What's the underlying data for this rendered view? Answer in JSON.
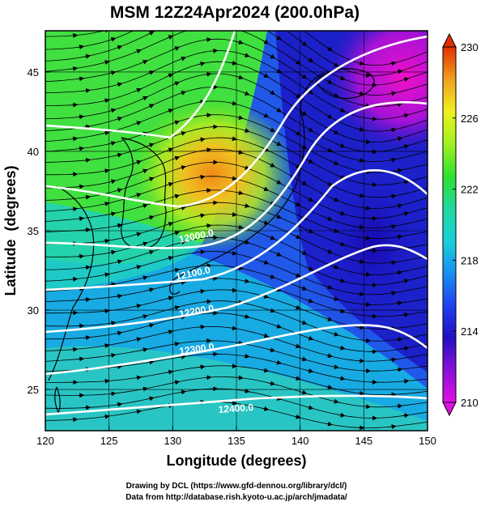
{
  "chart_data": {
    "type": "heatmap",
    "title": "MSM 12Z24Apr2024 (200.0hPa)",
    "xlabel": "Longitude (degrees)",
    "ylabel": "Latitude  (degrees)",
    "xlim": [
      120,
      150
    ],
    "ylim": [
      22.4,
      47.6
    ],
    "x_ticks": [
      120,
      125,
      130,
      135,
      140,
      145,
      150
    ],
    "y_ticks": [
      25,
      30,
      35,
      40,
      45
    ],
    "colorbar": {
      "range": [
        210,
        230
      ],
      "ticks": [
        210,
        214,
        218,
        222,
        226,
        230
      ],
      "colors": [
        "#e010e0",
        "#8a10d8",
        "#2010c0",
        "#2040f0",
        "#1890f0",
        "#18d0d8",
        "#20d8a0",
        "#30e030",
        "#a0f020",
        "#f0f020",
        "#f0a020",
        "#e03000"
      ]
    },
    "contour_labels": [
      "12000.0",
      "12100.0",
      "12200.0",
      "12300.0",
      "12400.0"
    ],
    "warm_core": {
      "lon": 132.5,
      "lat": 39.5,
      "value": 227
    },
    "overlay": "wind streamlines",
    "grid": true,
    "footer": [
      "Drawing by DCL (https://www.gfd-dennou.org/library/dcl/)",
      "Data from http://database.rish.kyoto-u.ac.jp/arch/jmadata/"
    ]
  }
}
